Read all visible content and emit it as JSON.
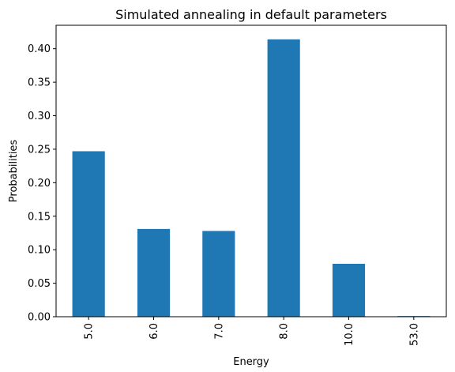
{
  "chart_data": {
    "type": "bar",
    "title": "Simulated annealing in default parameters",
    "xlabel": "Energy",
    "ylabel": "Probabilities",
    "categories": [
      "5.0",
      "6.0",
      "7.0",
      "8.0",
      "10.0",
      "53.0"
    ],
    "values": [
      0.247,
      0.131,
      0.128,
      0.414,
      0.079,
      0.001
    ],
    "ylim": [
      0,
      0.435
    ],
    "yticks": [
      0.0,
      0.05,
      0.1,
      0.15,
      0.2,
      0.25,
      0.3,
      0.35,
      0.4
    ],
    "ytick_labels": [
      "0.00",
      "0.05",
      "0.10",
      "0.15",
      "0.20",
      "0.25",
      "0.30",
      "0.35",
      "0.40"
    ],
    "bar_color": "#1f77b4",
    "grid": false,
    "legend": "none",
    "xtick_rotation": "vertical"
  }
}
